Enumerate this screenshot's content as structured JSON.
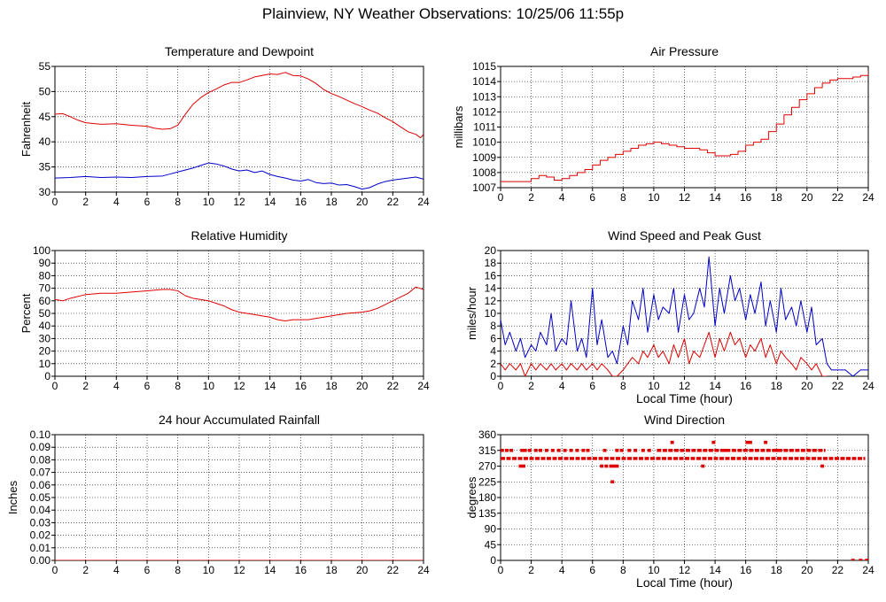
{
  "page_title": "Plainview, NY Weather Observations: 10/25/06 11:55p",
  "colors": {
    "red": "#e00000",
    "blue": "#0000c8",
    "grid": "#000000"
  },
  "chart_data": [
    {
      "type": "line",
      "title": "Temperature and Dewpoint",
      "xlabel": "",
      "ylabel": "Fahrenheit",
      "xlim": [
        0,
        24
      ],
      "ylim": [
        30,
        55
      ],
      "xticks": [
        0,
        2,
        4,
        6,
        8,
        10,
        12,
        14,
        16,
        18,
        20,
        22,
        24
      ],
      "yticks": [
        30,
        35,
        40,
        45,
        50,
        55
      ],
      "grid": true,
      "series": [
        {
          "color": "red",
          "x": [
            0,
            0.5,
            1,
            1.5,
            2,
            3,
            4,
            5,
            6,
            6.5,
            7,
            7.5,
            8,
            8.5,
            9,
            9.5,
            10,
            10.5,
            11,
            11.5,
            12,
            12.5,
            13,
            13.5,
            14,
            14.5,
            15,
            15.5,
            16,
            16.5,
            17,
            17.5,
            18,
            18.5,
            19,
            19.5,
            20,
            20.5,
            21,
            21.5,
            22,
            22.5,
            23,
            23.5,
            23.8,
            24
          ],
          "y": [
            45.5,
            45.6,
            45,
            44.3,
            43.8,
            43.5,
            43.6,
            43.3,
            43.1,
            42.7,
            42.5,
            42.6,
            43.3,
            45.5,
            47.5,
            48.8,
            49.8,
            50.5,
            51.3,
            51.8,
            51.8,
            52.3,
            52.9,
            53.2,
            53.5,
            53.4,
            53.8,
            53.2,
            53.1,
            52.5,
            51.6,
            50.4,
            49.6,
            49,
            48.3,
            47.6,
            47,
            46.3,
            45.7,
            44.8,
            44,
            43,
            42,
            41.5,
            40.8,
            41.5
          ]
        },
        {
          "color": "blue",
          "x": [
            0,
            1,
            2,
            3,
            4,
            5,
            6,
            7,
            7.5,
            8,
            9,
            9.5,
            10,
            10.5,
            11,
            11.5,
            12,
            12.5,
            13,
            13.5,
            14,
            14.5,
            15,
            15.5,
            16,
            16.5,
            17,
            17.5,
            18,
            18.5,
            19,
            19.5,
            20,
            20.5,
            21,
            21.5,
            22,
            22.5,
            23,
            23.5,
            24
          ],
          "y": [
            32.8,
            32.9,
            33.1,
            32.9,
            33,
            32.9,
            33.1,
            33.2,
            33.6,
            34,
            34.8,
            35.3,
            35.8,
            35.6,
            35.2,
            34.6,
            34.2,
            34.4,
            33.9,
            34.2,
            33.5,
            33.1,
            32.8,
            32.4,
            32.2,
            32.5,
            31.9,
            31.7,
            31.8,
            31.4,
            31.5,
            31.1,
            30.6,
            30.9,
            31.6,
            32.1,
            32.4,
            32.6,
            32.8,
            33,
            32.6
          ]
        }
      ]
    },
    {
      "type": "line",
      "title": "Air Pressure",
      "xlabel": "",
      "ylabel": "millibars",
      "xlim": [
        0,
        24
      ],
      "ylim": [
        1007,
        1015
      ],
      "xticks": [
        0,
        2,
        4,
        6,
        8,
        10,
        12,
        14,
        16,
        18,
        20,
        22,
        24
      ],
      "yticks": [
        1007,
        1008,
        1009,
        1010,
        1011,
        1012,
        1013,
        1014,
        1015
      ],
      "grid": true,
      "series": [
        {
          "color": "red",
          "step": true,
          "x": [
            0,
            1,
            2,
            2.5,
            3,
            3.5,
            4,
            4.5,
            5,
            5.5,
            6,
            6.5,
            7,
            7.5,
            8,
            8.5,
            9,
            9.5,
            10,
            10.5,
            11,
            11.5,
            12,
            12.5,
            13,
            13.5,
            14,
            14.5,
            15,
            15.5,
            16,
            16.5,
            17,
            17.5,
            18,
            18.5,
            19,
            19.5,
            20,
            20.5,
            21,
            21.5,
            22,
            22.5,
            23,
            23.5,
            24
          ],
          "y": [
            1007.4,
            1007.4,
            1007.6,
            1007.8,
            1007.7,
            1007.5,
            1007.6,
            1007.8,
            1008,
            1008.2,
            1008.5,
            1008.8,
            1009,
            1009.2,
            1009.4,
            1009.6,
            1009.8,
            1009.9,
            1010,
            1009.9,
            1009.8,
            1009.7,
            1009.6,
            1009.6,
            1009.5,
            1009.3,
            1009.1,
            1009.1,
            1009.2,
            1009.4,
            1009.8,
            1010,
            1010.2,
            1010.7,
            1011.2,
            1011.8,
            1012.3,
            1012.8,
            1013.2,
            1013.6,
            1013.9,
            1014.1,
            1014.2,
            1014.2,
            1014.3,
            1014.4,
            1014.7
          ]
        }
      ]
    },
    {
      "type": "line",
      "title": "Relative Humidity",
      "xlabel": "",
      "ylabel": "Percent",
      "xlim": [
        0,
        24
      ],
      "ylim": [
        0,
        100
      ],
      "xticks": [
        0,
        2,
        4,
        6,
        8,
        10,
        12,
        14,
        16,
        18,
        20,
        22,
        24
      ],
      "yticks": [
        0,
        10,
        20,
        30,
        40,
        50,
        60,
        70,
        80,
        90,
        100
      ],
      "grid": true,
      "series": [
        {
          "color": "red",
          "x": [
            0,
            0.5,
            1,
            2,
            3,
            4,
            5,
            6,
            7,
            7.5,
            8,
            8.5,
            9,
            9.5,
            10,
            10.5,
            11,
            11.5,
            12,
            12.5,
            13,
            13.5,
            14,
            14.5,
            15,
            15.5,
            16,
            16.5,
            17,
            17.5,
            18,
            19,
            20,
            20.5,
            21,
            21.5,
            22,
            22.5,
            23,
            23.5,
            24
          ],
          "y": [
            61,
            60,
            62,
            65,
            66,
            66,
            67,
            68,
            69,
            69,
            68,
            64,
            62,
            61,
            60,
            58,
            56,
            53,
            51,
            50,
            49,
            48,
            47,
            45,
            44,
            45,
            45,
            45,
            46,
            47,
            48,
            50,
            51,
            52,
            54,
            57,
            60,
            63,
            66,
            71,
            69
          ]
        }
      ]
    },
    {
      "type": "line",
      "title": "Wind Speed and Peak Gust",
      "xlabel": "Local Time (hour)",
      "ylabel": "miles/hour",
      "xlim": [
        0,
        24
      ],
      "ylim": [
        0,
        20
      ],
      "xticks": [
        0,
        2,
        4,
        6,
        8,
        10,
        12,
        14,
        16,
        18,
        20,
        22,
        24
      ],
      "yticks": [
        0,
        2,
        4,
        6,
        8,
        10,
        12,
        14,
        16,
        18,
        20
      ],
      "grid": true,
      "series": [
        {
          "color": "blue",
          "x": [
            0,
            0.3,
            0.6,
            1,
            1.3,
            1.6,
            2,
            2.3,
            2.6,
            3,
            3.3,
            3.6,
            4,
            4.3,
            4.6,
            5,
            5.3,
            5.6,
            6,
            6.3,
            6.6,
            7,
            7.3,
            7.6,
            8,
            8.3,
            8.6,
            9,
            9.3,
            9.6,
            10,
            10.3,
            10.6,
            11,
            11.3,
            11.6,
            12,
            12.3,
            12.6,
            13,
            13.3,
            13.6,
            14,
            14.3,
            14.6,
            15,
            15.3,
            15.6,
            16,
            16.3,
            16.6,
            17,
            17.3,
            17.6,
            18,
            18.3,
            18.6,
            19,
            19.3,
            19.6,
            20,
            20.3,
            20.6,
            21,
            21.3,
            21.6,
            22,
            22.5,
            23,
            23.5,
            24
          ],
          "y": [
            9,
            5,
            7,
            4,
            6,
            3,
            5,
            4,
            7,
            5,
            10,
            4,
            6,
            5,
            12,
            4,
            6,
            3,
            14,
            5,
            9,
            3,
            4,
            2,
            8,
            5,
            12,
            9,
            14,
            7,
            13,
            9,
            11,
            10,
            14,
            7,
            13,
            9,
            10,
            14,
            11,
            19,
            8,
            14,
            10,
            16,
            12,
            14,
            9,
            13,
            10,
            15,
            8,
            12,
            7,
            14,
            9,
            11,
            8,
            12,
            7,
            11,
            5,
            6,
            2,
            1,
            1,
            1,
            0,
            1,
            1
          ]
        },
        {
          "color": "red",
          "x": [
            0,
            0.3,
            0.6,
            1,
            1.3,
            1.6,
            2,
            2.3,
            2.6,
            3,
            3.3,
            3.6,
            4,
            4.3,
            4.6,
            5,
            5.3,
            5.6,
            6,
            6.3,
            6.6,
            7,
            7.3,
            7.6,
            8,
            8.3,
            8.6,
            9,
            9.3,
            9.6,
            10,
            10.3,
            10.6,
            11,
            11.3,
            11.6,
            12,
            12.3,
            12.6,
            13,
            13.3,
            13.6,
            14,
            14.3,
            14.6,
            15,
            15.3,
            15.6,
            16,
            16.3,
            16.6,
            17,
            17.3,
            17.6,
            18,
            18.3,
            18.6,
            19,
            19.3,
            19.6,
            20,
            20.3,
            20.6,
            21,
            21.3
          ],
          "y": [
            2,
            1,
            2,
            1,
            2,
            0,
            2,
            1,
            2,
            1,
            2,
            1,
            2,
            1,
            2,
            1,
            2,
            1,
            2,
            1,
            2,
            1,
            0,
            0,
            1,
            2,
            3,
            2,
            4,
            3,
            5,
            3,
            4,
            2,
            5,
            3,
            6,
            2,
            4,
            3,
            5,
            7,
            3,
            6,
            4,
            7,
            5,
            6,
            3,
            5,
            4,
            6,
            3,
            5,
            2,
            4,
            3,
            2,
            1,
            3,
            2,
            1,
            2,
            0,
            0
          ]
        }
      ]
    },
    {
      "type": "line",
      "title": "24 hour Accumulated Rainfall",
      "xlabel": "",
      "ylabel": "Inches",
      "xlim": [
        0,
        24
      ],
      "ylim": [
        0,
        0.1
      ],
      "xticks": [
        0,
        2,
        4,
        6,
        8,
        10,
        12,
        14,
        16,
        18,
        20,
        22,
        24
      ],
      "yticks": [
        "0.00",
        "0.01",
        "0.02",
        "0.03",
        "0.04",
        "0.05",
        "0.06",
        "0.07",
        "0.08",
        "0.09",
        "0.10"
      ],
      "grid": true,
      "series": [
        {
          "color": "red",
          "x": [
            0,
            24
          ],
          "y": [
            0,
            0
          ]
        }
      ]
    },
    {
      "type": "scatter",
      "title": "Wind Direction",
      "xlabel": "Local Time (hour)",
      "ylabel": "degrees",
      "xlim": [
        0,
        24
      ],
      "ylim": [
        0,
        360
      ],
      "xticks": [
        0,
        2,
        4,
        6,
        8,
        10,
        12,
        14,
        16,
        18,
        20,
        22,
        24
      ],
      "yticks": [
        0,
        45,
        90,
        135,
        180,
        225,
        270,
        315,
        360
      ],
      "grid": true,
      "segments": [
        {
          "color": "red",
          "y": 292,
          "x0": 0,
          "x1": 23.8
        },
        {
          "color": "red",
          "y": 315,
          "x0": 10.2,
          "x1": 21.2
        }
      ],
      "series": [
        {
          "color": "red",
          "x": [
            0.1,
            0.4,
            0.7,
            1.4,
            1.6,
            1.9,
            2.3,
            2.6,
            3.0,
            3.4,
            3.8,
            4.2,
            4.6,
            5.0,
            5.4,
            5.7,
            6.8,
            7.6,
            7.9,
            8.4,
            8.8,
            9.3,
            9.7,
            1.3,
            1.5,
            6.6,
            6.9,
            7.2,
            7.4,
            7.6,
            7.3,
            11.2,
            13.9,
            16.1,
            16.3,
            17.3,
            13.2,
            14.6,
            15.2,
            18.1,
            21.0,
            23.0,
            23.5,
            23.9,
            24.0
          ],
          "y": [
            315,
            315,
            315,
            315,
            315,
            315,
            315,
            315,
            315,
            315,
            315,
            315,
            315,
            315,
            315,
            315,
            315,
            315,
            315,
            315,
            315,
            315,
            315,
            270,
            270,
            270,
            270,
            270,
            270,
            270,
            225,
            338,
            338,
            338,
            338,
            338,
            270,
            315,
            292,
            315,
            270,
            0,
            0,
            0,
            0
          ]
        }
      ]
    }
  ]
}
